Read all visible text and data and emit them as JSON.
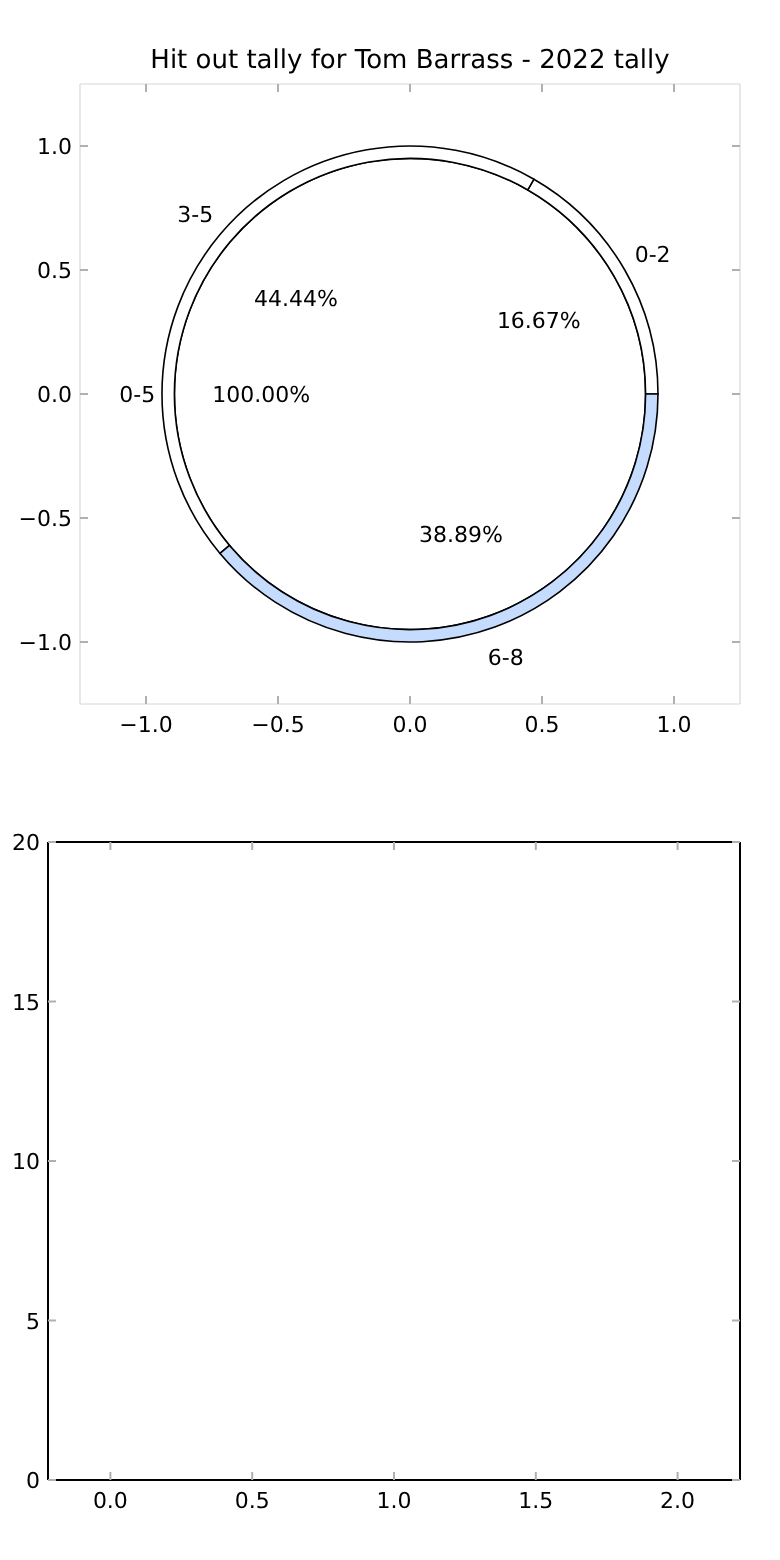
{
  "chart_data": [
    {
      "type": "donut",
      "title": "Hit out tally for Tom Barrass - 2022 tally",
      "categories": [
        "0-2",
        "3-5",
        "6-8"
      ],
      "values": [
        16.67,
        44.44,
        38.89
      ],
      "colors": [
        "#ffffff",
        "#ffffff",
        "#c6dcff"
      ],
      "value_labels": [
        "16.67%",
        "44.44%",
        "38.89%"
      ]
    },
    {
      "type": "pie",
      "categories": [
        "0-5"
      ],
      "values": [
        100
      ],
      "colors": [
        "#ffffff"
      ],
      "value_labels": [
        "100.00%"
      ]
    },
    {
      "type": "scatter",
      "xlim": [
        -1.25,
        1.25
      ],
      "ylim": [
        -1.25,
        1.25
      ],
      "xticks": [
        {
          "value": -1,
          "label": "−1.0"
        },
        {
          "value": -0.5,
          "label": "−0.5"
        },
        {
          "value": 0,
          "label": "0.0"
        },
        {
          "value": 0.5,
          "label": "0.5"
        },
        {
          "value": 1,
          "label": "1.0"
        }
      ],
      "yticks": [
        {
          "value": -1,
          "label": "−1.0"
        },
        {
          "value": -0.5,
          "label": "−0.5"
        },
        {
          "value": 0,
          "label": "0.0"
        },
        {
          "value": 0.5,
          "label": "0.5"
        },
        {
          "value": 1,
          "label": "1.0"
        }
      ]
    },
    {
      "type": "scatter",
      "xlim": [
        -0.22,
        2.22
      ],
      "xticks": [
        {
          "value": 0,
          "label": "0.0"
        },
        0.5,
        {
          "value": 1,
          "label": "1.0"
        },
        1.5,
        {
          "value": 2,
          "label": "2.0"
        }
      ],
      "ylim": [
        0,
        20
      ],
      "yticks": [
        0,
        5,
        10,
        15,
        20
      ]
    }
  ]
}
